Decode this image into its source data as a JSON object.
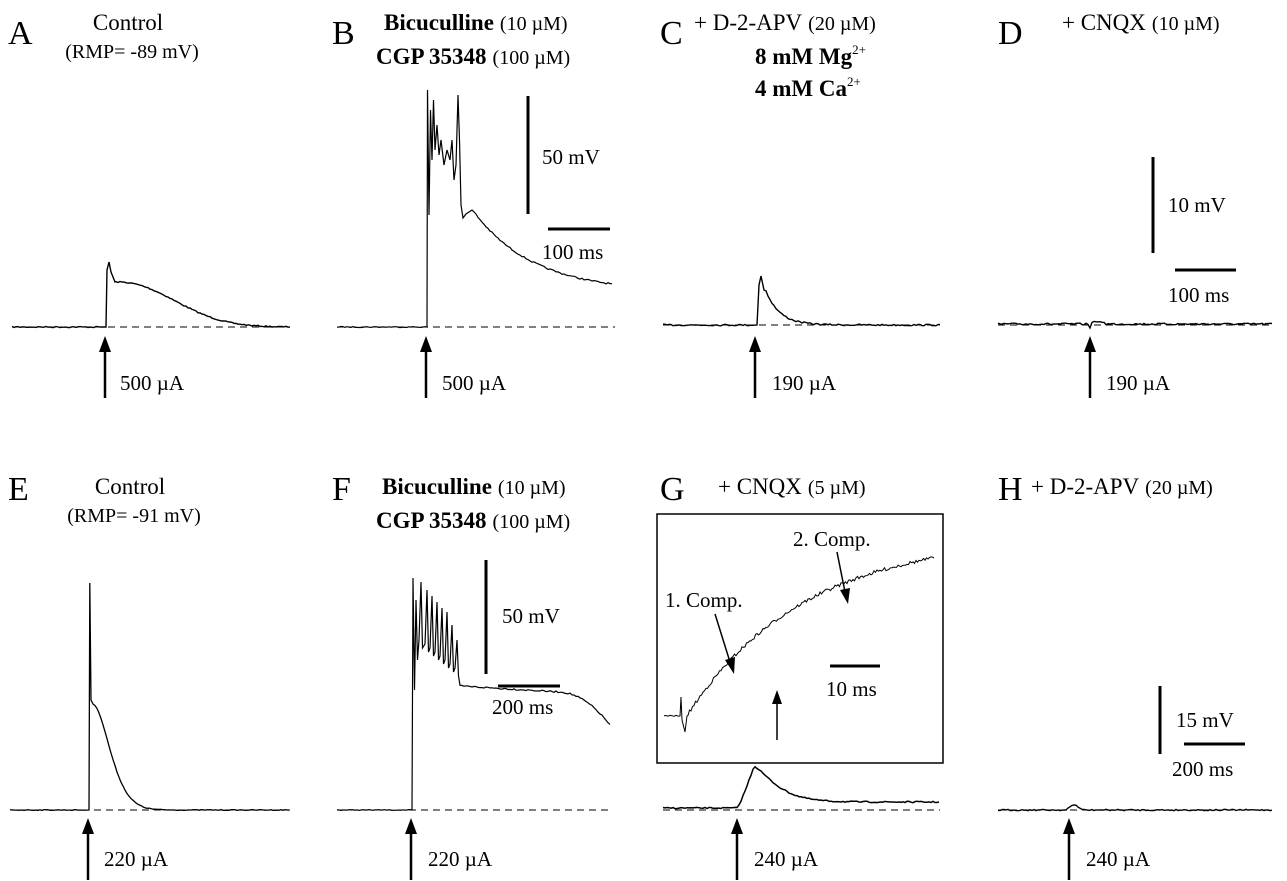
{
  "panels": {
    "A": {
      "letter": "A",
      "title": "Control",
      "rmp": "(RMP= -89 mV)",
      "stim": "500 µA"
    },
    "B": {
      "letter": "B",
      "drug1": "Bicuculline",
      "drug1_conc": "(10 µM)",
      "drug2": "CGP 35348",
      "drug2_conc": "(100 µM)",
      "stim": "500 µA",
      "scale_v": "50 mV",
      "scale_t": "100 ms"
    },
    "C": {
      "letter": "C",
      "drug": "+ D-2-APV",
      "drug_conc": "(20 µM)",
      "mg": "8 mM Mg",
      "mg_sup": "2+",
      "ca": "4 mM Ca",
      "ca_sup": "2+",
      "stim": "190 µA"
    },
    "D": {
      "letter": "D",
      "drug": "+ CNQX",
      "drug_conc": "(10 µM)",
      "stim": "190 µA",
      "scale_v": "10 mV",
      "scale_t": "100 ms"
    },
    "E": {
      "letter": "E",
      "title": "Control",
      "rmp": "(RMP= -91 mV)",
      "stim": "220 µA"
    },
    "F": {
      "letter": "F",
      "drug1": "Bicuculline",
      "drug1_conc": "(10 µM)",
      "drug2": "CGP 35348",
      "drug2_conc": "(100 µM)",
      "stim": "220 µA",
      "scale_v": "50 mV",
      "scale_t": "200 ms"
    },
    "G": {
      "letter": "G",
      "drug": "+ CNQX",
      "drug_conc": "(5 µM)",
      "stim": "240 µA",
      "inset_label1": "1. Comp.",
      "inset_label2": "2. Comp.",
      "inset_scale_t": "10 ms"
    },
    "H": {
      "letter": "H",
      "drug": "+ D-2-APV",
      "drug_conc": "(20 µM)",
      "stim": "240 µA",
      "scale_v": "15 mV",
      "scale_t": "200 ms"
    }
  },
  "colors": {
    "ink": "#000000",
    "background": "#ffffff"
  }
}
